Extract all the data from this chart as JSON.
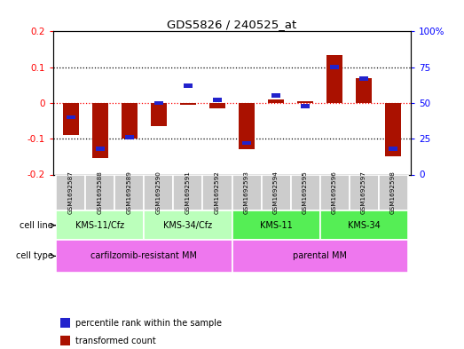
{
  "title": "GDS5826 / 240525_at",
  "samples": [
    "GSM1692587",
    "GSM1692588",
    "GSM1692589",
    "GSM1692590",
    "GSM1692591",
    "GSM1692592",
    "GSM1692593",
    "GSM1692594",
    "GSM1692595",
    "GSM1692596",
    "GSM1692597",
    "GSM1692598"
  ],
  "transformed_count": [
    -0.09,
    -0.155,
    -0.1,
    -0.065,
    -0.004,
    -0.016,
    -0.13,
    0.01,
    0.006,
    0.135,
    0.07,
    -0.15
  ],
  "percentile_rank": [
    40,
    18,
    26,
    50,
    62,
    52,
    22,
    55,
    48,
    75,
    67,
    18
  ],
  "cell_line_groups": [
    {
      "label": "KMS-11/Cfz",
      "start": 0,
      "end": 3,
      "color": "#bbffbb"
    },
    {
      "label": "KMS-34/Cfz",
      "start": 3,
      "end": 6,
      "color": "#bbffbb"
    },
    {
      "label": "KMS-11",
      "start": 6,
      "end": 9,
      "color": "#55ee55"
    },
    {
      "label": "KMS-34",
      "start": 9,
      "end": 12,
      "color": "#55ee55"
    }
  ],
  "cell_type_groups": [
    {
      "label": "carfilzomib-resistant MM",
      "start": 0,
      "end": 6,
      "color": "#ee77ee"
    },
    {
      "label": "parental MM",
      "start": 6,
      "end": 12,
      "color": "#ee77ee"
    }
  ],
  "bar_color": "#aa1100",
  "dot_color": "#2222cc",
  "ylim_left": [
    -0.2,
    0.2
  ],
  "ylim_right": [
    0,
    100
  ],
  "yticks_left": [
    -0.2,
    -0.1,
    0.0,
    0.1,
    0.2
  ],
  "yticks_right": [
    0,
    25,
    50,
    75,
    100
  ],
  "ytick_labels_right": [
    "0",
    "25",
    "50",
    "75",
    "100%"
  ],
  "background_color": "#ffffff",
  "plot_bg_color": "#ffffff",
  "legend_items": [
    {
      "label": "transformed count",
      "color": "#aa1100"
    },
    {
      "label": "percentile rank within the sample",
      "color": "#2222cc"
    }
  ],
  "sample_bg_color": "#cccccc",
  "sample_edge_color": "#ffffff"
}
